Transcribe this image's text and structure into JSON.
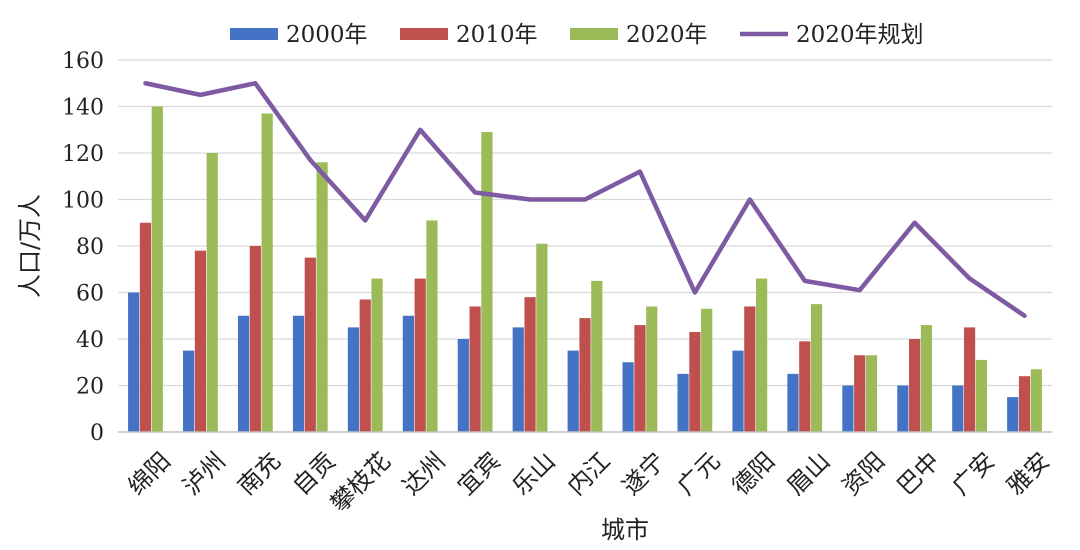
{
  "chart_data": {
    "type": "bar",
    "categories": [
      "绵阳",
      "泸州",
      "南充",
      "自贡",
      "攀枝花",
      "达州",
      "宜宾",
      "乐山",
      "内江",
      "遂宁",
      "广元",
      "德阳",
      "眉山",
      "资阳",
      "巴中",
      "广安",
      "雅安"
    ],
    "series": [
      {
        "name": "2000年",
        "type": "bar",
        "color": "#4472C4",
        "values": [
          60,
          35,
          50,
          50,
          45,
          50,
          40,
          45,
          35,
          30,
          25,
          35,
          25,
          20,
          20,
          20,
          15
        ]
      },
      {
        "name": "2010年",
        "type": "bar",
        "color": "#C0504D",
        "values": [
          90,
          78,
          80,
          75,
          57,
          66,
          54,
          58,
          49,
          46,
          43,
          54,
          39,
          33,
          40,
          45,
          24
        ]
      },
      {
        "name": "2020年",
        "type": "bar",
        "color": "#9BBB59",
        "values": [
          140,
          120,
          137,
          116,
          66,
          91,
          129,
          81,
          65,
          54,
          53,
          66,
          55,
          33,
          46,
          31,
          27
        ]
      },
      {
        "name": "2020年规划",
        "type": "line",
        "color": "#7E5AA2",
        "values": [
          150,
          145,
          150,
          117,
          91,
          130,
          103,
          100,
          100,
          112,
          60,
          100,
          65,
          61,
          90,
          66,
          50
        ]
      }
    ],
    "xlabel": "城市",
    "ylabel": "人口/万人",
    "ylim": [
      0,
      160
    ],
    "yticks": [
      0,
      20,
      40,
      60,
      80,
      100,
      120,
      140,
      160
    ],
    "grid": true,
    "legend": "top"
  }
}
